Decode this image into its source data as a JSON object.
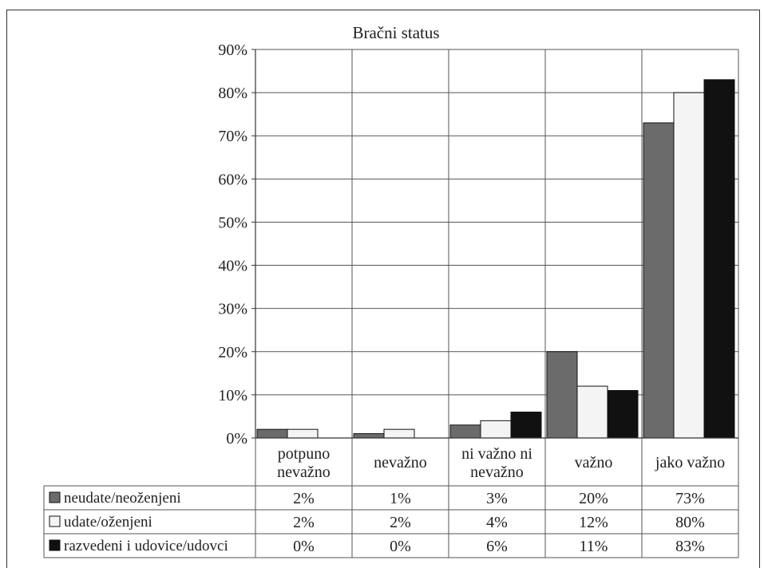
{
  "chart_data": {
    "type": "bar",
    "title": "Bračni status",
    "categories": [
      "potpuno nevažno",
      "nevažno",
      "ni važno ni nevažno",
      "važno",
      "jako važno"
    ],
    "category_lines": [
      [
        "potpuno",
        "nevažno"
      ],
      [
        "nevažno"
      ],
      [
        "ni važno ni",
        "nevažno"
      ],
      [
        "važno"
      ],
      [
        "jako važno"
      ]
    ],
    "series": [
      {
        "name": "neudate/neoženjeni",
        "values": [
          2,
          1,
          3,
          20,
          73
        ],
        "labels": [
          "2%",
          "1%",
          "3%",
          "20%",
          "73%"
        ],
        "color": "#6b6b6b"
      },
      {
        "name": "udate/oženjeni",
        "values": [
          2,
          2,
          4,
          12,
          80
        ],
        "labels": [
          "2%",
          "2%",
          "4%",
          "12%",
          "80%"
        ],
        "color": "#f4f4f4"
      },
      {
        "name": "razvedeni i udovice/udovci",
        "values": [
          0,
          0,
          6,
          11,
          83
        ],
        "labels": [
          "0%",
          "0%",
          "6%",
          "11%",
          "83%"
        ],
        "color": "#111111"
      }
    ],
    "y_ticks": [
      "0%",
      "10%",
      "20%",
      "30%",
      "40%",
      "50%",
      "60%",
      "70%",
      "80%",
      "90%"
    ],
    "ylim": [
      0,
      90
    ],
    "grid": true,
    "legend": "data-table-left",
    "xlabel": "",
    "ylabel": ""
  }
}
